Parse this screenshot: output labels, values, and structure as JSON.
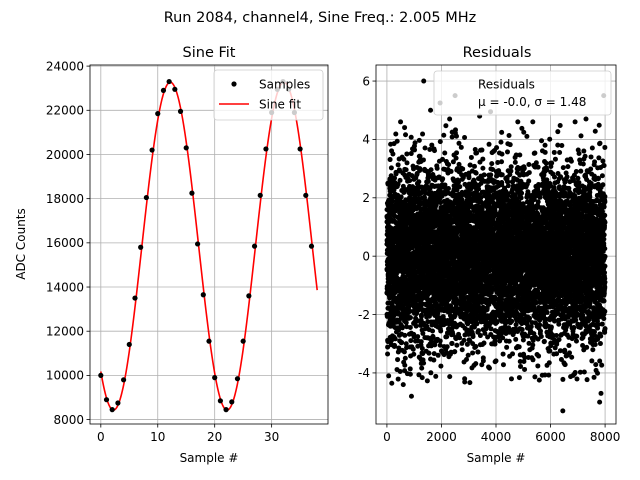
{
  "suptitle": "Run 2084, channel4, Sine Freq.: 2.005 MHz",
  "colors": {
    "samples": "#000000",
    "fit": "#ff0000",
    "residuals": "#000000",
    "grid": "#b0b0b0",
    "background": "#ffffff"
  },
  "chart_data": [
    {
      "type": "line",
      "title": "Sine Fit",
      "xlabel": "Sample #",
      "ylabel": "ADC Counts",
      "xlim": [
        -1.9,
        39.9
      ],
      "ylim": [
        7800,
        24050
      ],
      "xticks": [
        0,
        10,
        20,
        30
      ],
      "yticks": [
        8000,
        10000,
        12000,
        14000,
        16000,
        18000,
        20000,
        22000,
        24000
      ],
      "grid": true,
      "legend": {
        "position": "top-right",
        "entries": [
          "Samples",
          "Sine fit"
        ]
      },
      "fit": {
        "amplitude": 7420,
        "offset": 15850,
        "period": 19.95,
        "peak_sample": 12.2,
        "x_range": [
          0,
          38
        ]
      },
      "series": [
        {
          "name": "Samples",
          "style": "markers",
          "x": [
            0,
            1,
            2,
            3,
            4,
            5,
            6,
            7,
            8,
            9,
            10,
            11,
            12,
            13,
            14,
            15,
            16,
            17,
            18,
            19,
            20,
            21,
            22,
            23,
            24,
            25,
            26,
            27,
            28,
            29,
            30,
            31,
            32,
            33,
            34,
            35,
            36,
            37
          ],
          "y": [
            10000,
            8900,
            8450,
            8750,
            9800,
            11400,
            13500,
            15800,
            18050,
            20200,
            21850,
            22900,
            23300,
            22950,
            21950,
            20300,
            18250,
            15950,
            13650,
            11550,
            9900,
            8850,
            8450,
            8800,
            9850,
            11550,
            13600,
            15850,
            18150,
            20250,
            21900,
            22950,
            23300,
            22950,
            21900,
            20250,
            18150,
            15850
          ]
        },
        {
          "name": "Sine fit",
          "style": "line"
        }
      ]
    },
    {
      "type": "scatter",
      "title": "Residuals",
      "xlabel": "Sample #",
      "ylabel": "",
      "xlim": [
        -400,
        8400
      ],
      "ylim": [
        -5.75,
        6.55
      ],
      "xticks": [
        0,
        2000,
        4000,
        6000,
        8000
      ],
      "yticks": [
        -4,
        -2,
        0,
        2,
        4,
        6
      ],
      "grid": true,
      "legend": {
        "position": "top-right",
        "entries": [
          "Residuals",
          "μ = -0.0, σ = 1.48"
        ]
      },
      "stats": {
        "mean": -0.0,
        "std": 1.48,
        "n_points": 8000
      },
      "outliers": {
        "x": [
          1350,
          1950,
          2500,
          3800,
          6450,
          7950,
          1600,
          2300,
          3400,
          4800,
          7800,
          500,
          6900,
          7300,
          2850,
          5350,
          900,
          600,
          7850
        ],
        "y": [
          6.0,
          5.25,
          5.5,
          4.95,
          -5.3,
          5.5,
          5.0,
          4.7,
          4.8,
          4.6,
          -5.0,
          4.6,
          4.6,
          4.7,
          -4.2,
          4.6,
          -4.8,
          -4.4,
          -4.7
        ]
      }
    }
  ],
  "legend_labels": {
    "samples": "Samples",
    "fit": "Sine fit",
    "residuals": "Residuals",
    "residuals_stats": "μ = -0.0, σ = 1.48"
  }
}
